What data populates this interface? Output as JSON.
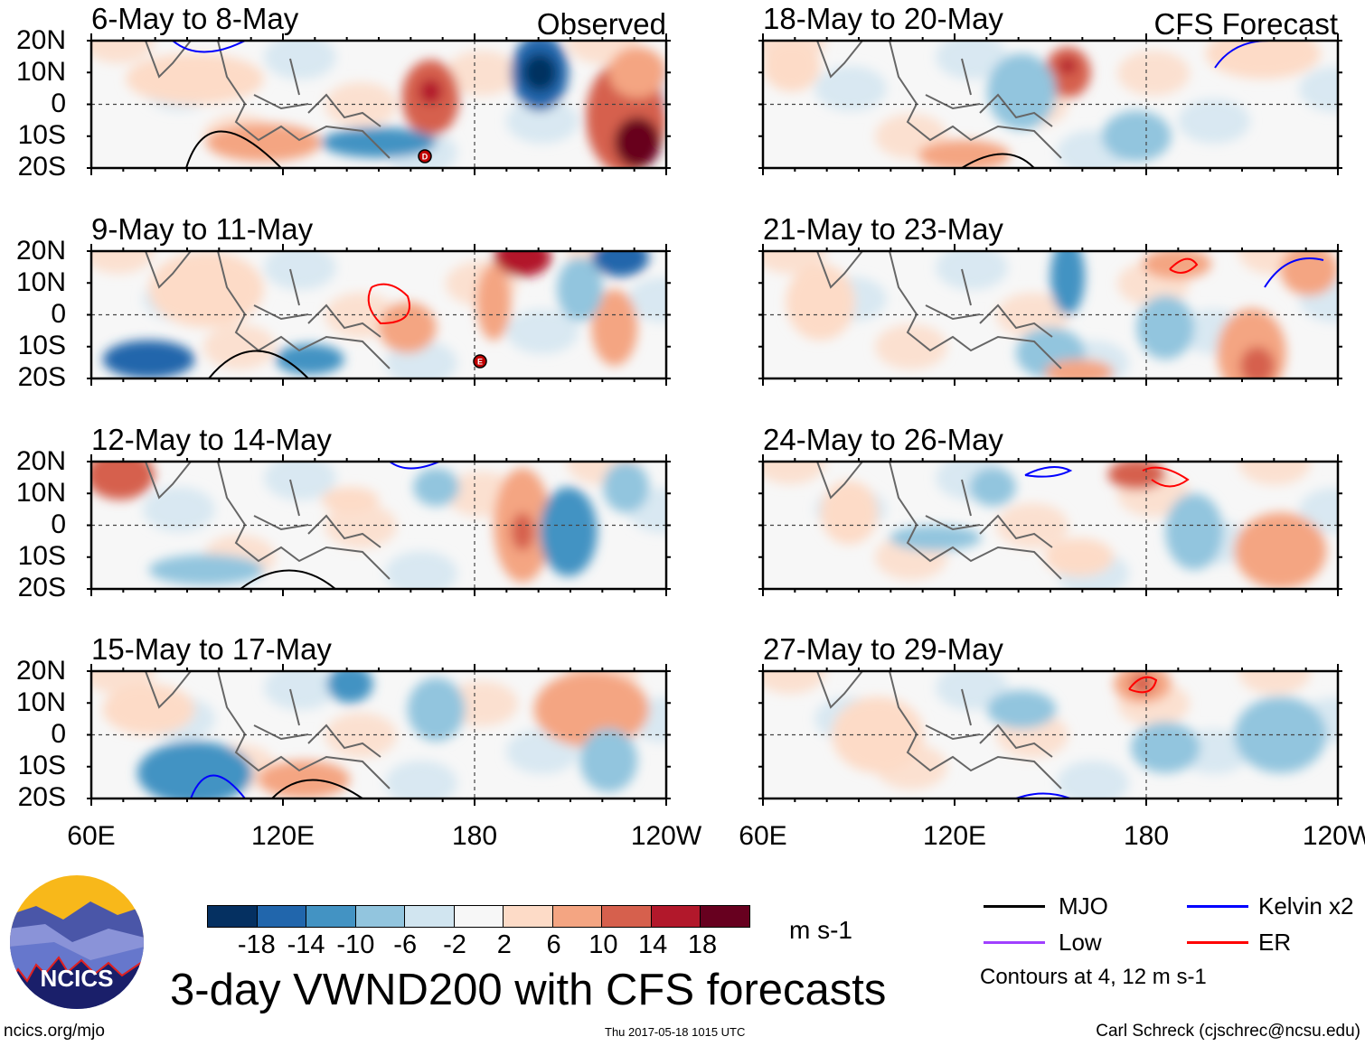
{
  "panels_left": [
    {
      "title": "6-May to 8-May",
      "tag": "Observed"
    },
    {
      "title": "9-May to 11-May",
      "tag": ""
    },
    {
      "title": "12-May to 14-May",
      "tag": ""
    },
    {
      "title": "15-May to 17-May",
      "tag": ""
    }
  ],
  "panels_right": [
    {
      "title": "18-May to 20-May",
      "tag": "CFS Forecast"
    },
    {
      "title": "21-May to 23-May",
      "tag": ""
    },
    {
      "title": "24-May to 26-May",
      "tag": ""
    },
    {
      "title": "27-May to 29-May",
      "tag": ""
    }
  ],
  "lat_labels": [
    "20N",
    "10N",
    "0",
    "10S",
    "20S"
  ],
  "lon_labels": [
    "60E",
    "120E",
    "180",
    "120W"
  ],
  "storm_markers": [
    "D",
    "E"
  ],
  "colorbar": {
    "colors": [
      "#053061",
      "#2166ac",
      "#4393c3",
      "#92c5de",
      "#d1e5f0",
      "#f7f7f7",
      "#fddbc7",
      "#f4a582",
      "#d6604d",
      "#b2182b",
      "#67001f"
    ],
    "labels": [
      "-18",
      "-14",
      "-10",
      "-6",
      "-2",
      "2",
      "6",
      "10",
      "14",
      "18"
    ],
    "units": "m s-1"
  },
  "title": "3-day VWND200 with CFS forecasts",
  "legend": {
    "items": [
      {
        "label": "MJO",
        "color": "#000000"
      },
      {
        "label": "Kelvin x2",
        "color": "#0000ff"
      },
      {
        "label": "Low",
        "color": "#a040ff"
      },
      {
        "label": "ER",
        "color": "#ff0000"
      }
    ],
    "note": "Contours at 4, 12 m s-1"
  },
  "logo_text": "NCICS",
  "footer": {
    "left": "ncics.org/mjo",
    "center": "Thu 2017-05-18 1015 UTC",
    "right": "Carl Schreck (cjschrec@ncsu.edu)"
  }
}
